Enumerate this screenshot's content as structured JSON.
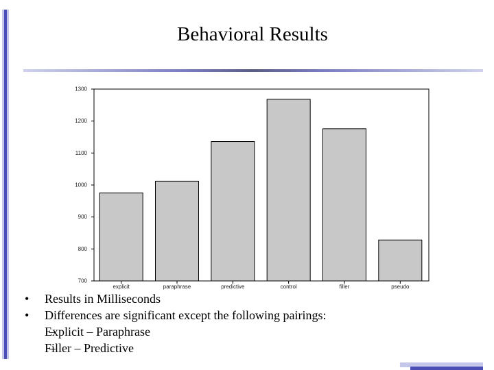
{
  "slide": {
    "title": "Behavioral Results",
    "bullets": [
      "Results in Milliseconds",
      "Differences are significant except the following pairings:"
    ],
    "sub_bullets": [
      "Explicit – Paraphrase",
      "Filler – Predictive"
    ],
    "bullet_glyph": "•",
    "dash_glyph": "–"
  },
  "colors": {
    "accent_dark": "#4b4fb5",
    "accent_light": "#c4c7ea",
    "bar_fill": "#c8c8c8"
  },
  "chart_data": {
    "type": "bar",
    "categories": [
      "explicit",
      "paraphrase",
      "predictive",
      "control",
      "filler",
      "pseudo"
    ],
    "values": [
      975,
      1012,
      1136,
      1268,
      1176,
      828
    ],
    "title": "",
    "xlabel": "",
    "ylabel": "",
    "ylim": [
      700,
      1300
    ],
    "yticks": [
      700,
      800,
      900,
      1000,
      1100,
      1200,
      1300
    ],
    "ytick_labels": [
      "700",
      "800",
      "900",
      "1000",
      "1100",
      "1200",
      "1300"
    ],
    "grid": false
  }
}
